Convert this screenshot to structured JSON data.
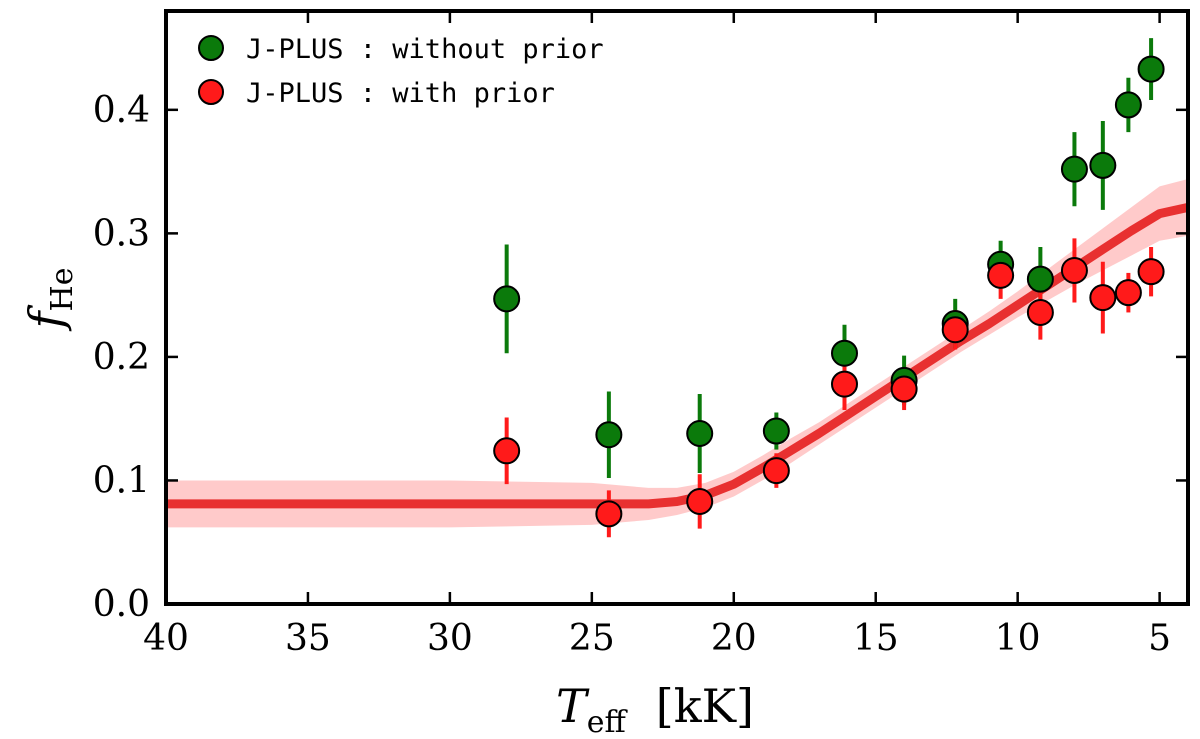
{
  "chart_data": {
    "type": "scatter",
    "title": "",
    "xlabel": {
      "main": "T",
      "sub": "eff",
      "unit": "[kK]"
    },
    "ylabel": {
      "main": "f",
      "sub": "He"
    },
    "xlim": [
      40,
      4
    ],
    "ylim": [
      0.0,
      0.48
    ],
    "x_inverted": true,
    "x_ticks": [
      40,
      35,
      30,
      25,
      20,
      15,
      10,
      5
    ],
    "x_tick_labels": [
      "40",
      "35",
      "30",
      "25",
      "20",
      "15",
      "10",
      "5"
    ],
    "y_ticks": [
      0.0,
      0.1,
      0.2,
      0.3,
      0.4
    ],
    "y_tick_labels": [
      "0.0",
      "0.1",
      "0.2",
      "0.3",
      "0.4"
    ],
    "grid": false,
    "legend_position": "top-left",
    "series": [
      {
        "name": "J-PLUS : without prior",
        "color": "#0b7a0b",
        "points": [
          {
            "x": 28.0,
            "y": 0.247,
            "err": 0.044
          },
          {
            "x": 24.4,
            "y": 0.137,
            "err": 0.035
          },
          {
            "x": 21.2,
            "y": 0.138,
            "err": 0.032
          },
          {
            "x": 18.5,
            "y": 0.14,
            "err": 0.015
          },
          {
            "x": 16.1,
            "y": 0.203,
            "err": 0.023
          },
          {
            "x": 14.0,
            "y": 0.181,
            "err": 0.02
          },
          {
            "x": 12.2,
            "y": 0.227,
            "err": 0.02
          },
          {
            "x": 10.6,
            "y": 0.275,
            "err": 0.019
          },
          {
            "x": 9.2,
            "y": 0.263,
            "err": 0.026
          },
          {
            "x": 8.0,
            "y": 0.352,
            "err": 0.03
          },
          {
            "x": 7.0,
            "y": 0.355,
            "err": 0.036
          },
          {
            "x": 6.1,
            "y": 0.404,
            "err": 0.022
          },
          {
            "x": 5.3,
            "y": 0.433,
            "err": 0.025
          }
        ]
      },
      {
        "name": "J-PLUS : with prior",
        "color": "#ff1a1a",
        "points": [
          {
            "x": 28.0,
            "y": 0.124,
            "err": 0.027
          },
          {
            "x": 24.4,
            "y": 0.073,
            "err": 0.019
          },
          {
            "x": 21.2,
            "y": 0.083,
            "err": 0.022
          },
          {
            "x": 18.5,
            "y": 0.108,
            "err": 0.014
          },
          {
            "x": 16.1,
            "y": 0.178,
            "err": 0.021
          },
          {
            "x": 14.0,
            "y": 0.174,
            "err": 0.017
          },
          {
            "x": 12.2,
            "y": 0.222,
            "err": 0.016
          },
          {
            "x": 10.6,
            "y": 0.266,
            "err": 0.019
          },
          {
            "x": 9.2,
            "y": 0.236,
            "err": 0.022
          },
          {
            "x": 8.0,
            "y": 0.27,
            "err": 0.026
          },
          {
            "x": 7.0,
            "y": 0.248,
            "err": 0.029
          },
          {
            "x": 6.1,
            "y": 0.252,
            "err": 0.016
          },
          {
            "x": 5.3,
            "y": 0.269,
            "err": 0.02
          }
        ]
      }
    ],
    "fit_curve": {
      "color": "#e83030",
      "band_color": "#ff6666",
      "band_opacity": 0.35,
      "points": [
        {
          "x": 40,
          "y": 0.081,
          "lo": 0.062,
          "hi": 0.1
        },
        {
          "x": 35,
          "y": 0.081,
          "lo": 0.062,
          "hi": 0.1
        },
        {
          "x": 30,
          "y": 0.081,
          "lo": 0.062,
          "hi": 0.1
        },
        {
          "x": 25,
          "y": 0.081,
          "lo": 0.064,
          "hi": 0.098
        },
        {
          "x": 23,
          "y": 0.081,
          "lo": 0.068,
          "hi": 0.094
        },
        {
          "x": 22,
          "y": 0.083,
          "lo": 0.072,
          "hi": 0.094
        },
        {
          "x": 21,
          "y": 0.088,
          "lo": 0.078,
          "hi": 0.098
        },
        {
          "x": 20,
          "y": 0.097,
          "lo": 0.087,
          "hi": 0.107
        },
        {
          "x": 19,
          "y": 0.11,
          "lo": 0.1,
          "hi": 0.12
        },
        {
          "x": 18,
          "y": 0.124,
          "lo": 0.114,
          "hi": 0.134
        },
        {
          "x": 17,
          "y": 0.138,
          "lo": 0.129,
          "hi": 0.147
        },
        {
          "x": 16,
          "y": 0.153,
          "lo": 0.144,
          "hi": 0.162
        },
        {
          "x": 15,
          "y": 0.168,
          "lo": 0.159,
          "hi": 0.177
        },
        {
          "x": 14,
          "y": 0.183,
          "lo": 0.174,
          "hi": 0.192
        },
        {
          "x": 13,
          "y": 0.198,
          "lo": 0.189,
          "hi": 0.207
        },
        {
          "x": 12,
          "y": 0.213,
          "lo": 0.204,
          "hi": 0.222
        },
        {
          "x": 11,
          "y": 0.227,
          "lo": 0.218,
          "hi": 0.237
        },
        {
          "x": 10,
          "y": 0.242,
          "lo": 0.232,
          "hi": 0.253
        },
        {
          "x": 9,
          "y": 0.257,
          "lo": 0.245,
          "hi": 0.27
        },
        {
          "x": 8,
          "y": 0.272,
          "lo": 0.258,
          "hi": 0.287
        },
        {
          "x": 7,
          "y": 0.287,
          "lo": 0.27,
          "hi": 0.304
        },
        {
          "x": 6,
          "y": 0.302,
          "lo": 0.282,
          "hi": 0.321
        },
        {
          "x": 5,
          "y": 0.316,
          "lo": 0.294,
          "hi": 0.338
        },
        {
          "x": 4,
          "y": 0.321,
          "lo": 0.298,
          "hi": 0.344
        }
      ]
    }
  }
}
